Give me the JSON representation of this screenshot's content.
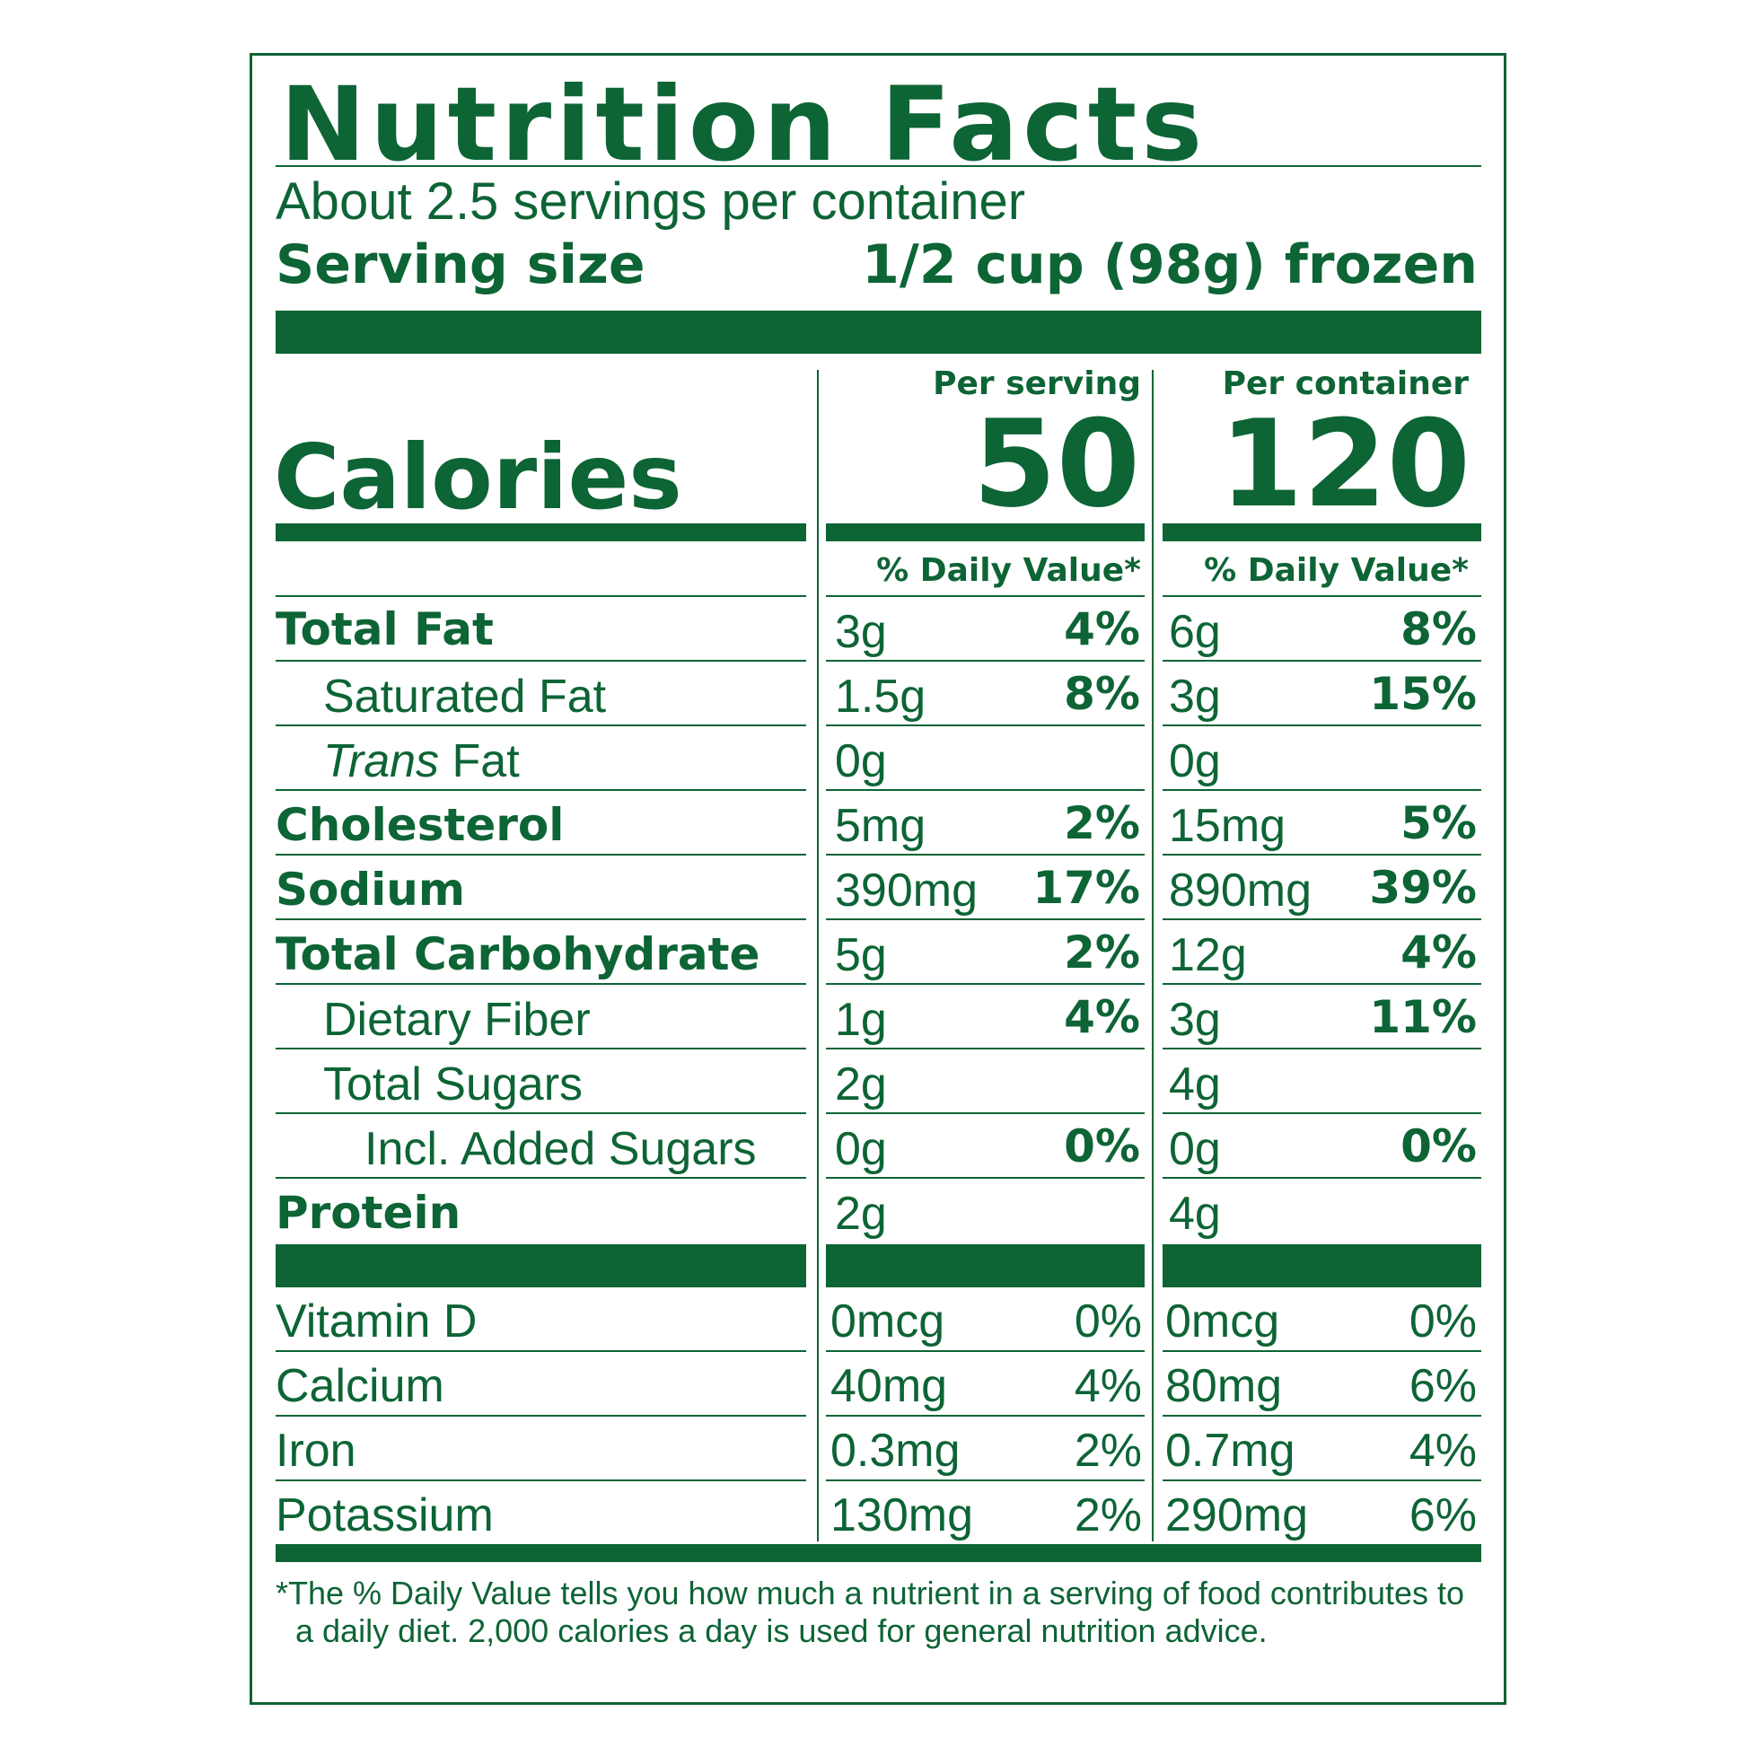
{
  "title": "Nutrition Facts",
  "servings_per_container": "About 2.5 servings per container",
  "serving_size_label": "Serving size",
  "serving_size_value": "1/2 cup (98g) frozen",
  "per_serving_label": "Per serving",
  "per_container_label": "Per container",
  "calories_label": "Calories",
  "calories_per_serving": "50",
  "calories_per_container": "120",
  "dv_header": "% Daily Value*",
  "nutrients": [
    {
      "name": "Total Fat",
      "serving_amount": "3g",
      "serving_dv": "4%",
      "container_amount": "6g",
      "container_dv": "8%"
    },
    {
      "name": "Saturated Fat",
      "serving_amount": "1.5g",
      "serving_dv": "8%",
      "container_amount": "3g",
      "container_dv": "15%"
    },
    {
      "name_italic": "Trans",
      "name": " Fat",
      "serving_amount": "0g",
      "serving_dv": "",
      "container_amount": "0g",
      "container_dv": ""
    },
    {
      "name": "Cholesterol",
      "serving_amount": "5mg",
      "serving_dv": "2%",
      "container_amount": "15mg",
      "container_dv": "5%"
    },
    {
      "name": "Sodium",
      "serving_amount": "390mg",
      "serving_dv": "17%",
      "container_amount": "890mg",
      "container_dv": "39%"
    },
    {
      "name": "Total Carbohydrate",
      "serving_amount": "5g",
      "serving_dv": "2%",
      "container_amount": "12g",
      "container_dv": "4%"
    },
    {
      "name": "Dietary Fiber",
      "serving_amount": "1g",
      "serving_dv": "4%",
      "container_amount": "3g",
      "container_dv": "11%"
    },
    {
      "name": "Total Sugars",
      "serving_amount": "2g",
      "serving_dv": "",
      "container_amount": "4g",
      "container_dv": ""
    },
    {
      "name": "Incl. Added Sugars",
      "serving_amount": "0g",
      "serving_dv": "0%",
      "container_amount": "0g",
      "container_dv": "0%"
    },
    {
      "name": "Protein",
      "serving_amount": "2g",
      "serving_dv": "",
      "container_amount": "4g",
      "container_dv": ""
    }
  ],
  "vitamins": [
    {
      "name": "Vitamin D",
      "serving_amount": "0mcg",
      "serving_dv": "0%",
      "container_amount": "0mcg",
      "container_dv": "0%"
    },
    {
      "name": "Calcium",
      "serving_amount": "40mg",
      "serving_dv": "4%",
      "container_amount": "80mg",
      "container_dv": "6%"
    },
    {
      "name": "Iron",
      "serving_amount": "0.3mg",
      "serving_dv": "2%",
      "container_amount": "0.7mg",
      "container_dv": "4%"
    },
    {
      "name": "Potassium",
      "serving_amount": "130mg",
      "serving_dv": "2%",
      "container_amount": "290mg",
      "container_dv": "6%"
    }
  ],
  "footnote": "*The % Daily Value tells you how much a nutrient in a serving of food contributes to a daily diet. 2,000 calories a day is used for general nutrition advice.",
  "colors": {
    "label_green": "#0d6435",
    "background": "#ffffff"
  }
}
